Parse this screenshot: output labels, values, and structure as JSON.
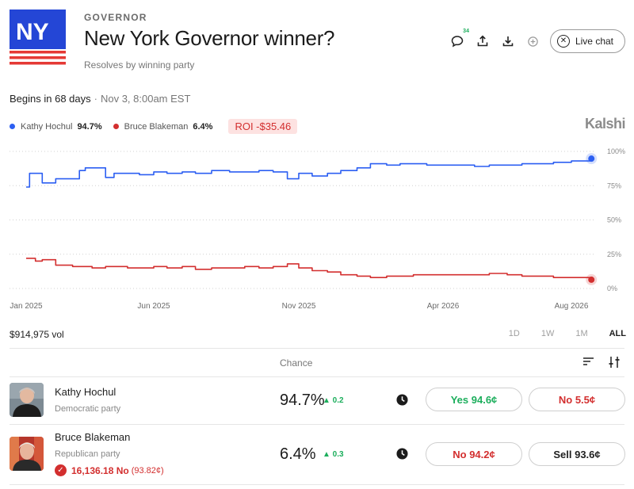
{
  "header": {
    "logo_text": "NY",
    "category": "GOVERNOR",
    "title": "New York Governor winner?",
    "subtitle": "Resolves by winning party",
    "comment_count": "34",
    "live_chat_label": "Live chat"
  },
  "timing": {
    "begins": "Begins in 68 days",
    "separator": "·",
    "date": "Nov 3, 8:00am EST"
  },
  "legend": {
    "items": [
      {
        "name": "Kathy Hochul",
        "pct": "94.7%",
        "color": "#2c5ff2"
      },
      {
        "name": "Bruce Blakeman",
        "pct": "6.4%",
        "color": "#d32f2f"
      }
    ],
    "roi": "ROI -$35.46"
  },
  "brand": "Kalshi",
  "chart_data": {
    "type": "line",
    "x_tick_labels": [
      "Jan 2025",
      "Jun 2025",
      "Nov 2025",
      "Apr 2026",
      "Aug 2026"
    ],
    "y_tick_labels": [
      "100%",
      "75%",
      "50%",
      "25%",
      "0%"
    ],
    "ylim": [
      0,
      100
    ],
    "grid": true,
    "series": [
      {
        "name": "Kathy Hochul",
        "color": "#2c5ff2",
        "x": [
          "2025-01-01",
          "2025-01-05",
          "2025-01-12",
          "2025-01-20",
          "2025-02-05",
          "2025-02-25",
          "2025-03-05",
          "2025-03-12",
          "2025-03-20",
          "2025-04-05",
          "2025-04-15",
          "2025-05-01",
          "2025-05-15",
          "2025-06-01",
          "2025-06-15",
          "2025-07-01",
          "2025-07-15",
          "2025-08-01",
          "2025-08-20",
          "2025-09-05",
          "2025-09-20",
          "2025-10-05",
          "2025-10-20",
          "2025-11-01",
          "2025-11-15",
          "2025-12-01",
          "2025-12-15",
          "2026-01-01",
          "2026-01-15",
          "2026-02-01",
          "2026-02-15",
          "2026-03-01",
          "2026-03-15",
          "2026-04-01",
          "2026-04-15",
          "2026-05-01",
          "2026-05-15",
          "2026-06-01",
          "2026-06-15",
          "2026-07-01",
          "2026-07-15",
          "2026-08-01",
          "2026-08-20"
        ],
        "y": [
          74,
          84,
          84,
          77,
          80,
          80,
          86,
          88,
          88,
          81,
          84,
          84,
          83,
          85,
          84,
          85,
          84,
          86,
          85,
          85,
          86,
          85,
          80,
          84,
          82,
          84,
          86,
          88,
          91,
          90,
          91,
          91,
          90,
          90,
          90,
          89,
          90,
          90,
          91,
          91,
          92,
          93,
          94.7
        ]
      },
      {
        "name": "Bruce Blakeman",
        "color": "#d32f2f",
        "x": [
          "2025-01-01",
          "2025-01-05",
          "2025-01-12",
          "2025-01-20",
          "2025-02-05",
          "2025-02-25",
          "2025-03-05",
          "2025-03-20",
          "2025-04-05",
          "2025-04-15",
          "2025-05-01",
          "2025-05-15",
          "2025-06-01",
          "2025-06-15",
          "2025-07-01",
          "2025-07-15",
          "2025-08-01",
          "2025-08-20",
          "2025-09-05",
          "2025-09-20",
          "2025-10-05",
          "2025-10-20",
          "2025-11-01",
          "2025-11-15",
          "2025-12-01",
          "2025-12-15",
          "2026-01-01",
          "2026-01-15",
          "2026-02-01",
          "2026-02-15",
          "2026-03-01",
          "2026-03-15",
          "2026-04-01",
          "2026-04-15",
          "2026-05-01",
          "2026-05-15",
          "2026-06-01",
          "2026-06-15",
          "2026-07-01",
          "2026-07-15",
          "2026-08-01",
          "2026-08-20"
        ],
        "y": [
          22,
          22,
          20,
          21,
          17,
          16,
          16,
          15,
          16,
          16,
          15,
          15,
          16,
          15,
          16,
          14,
          15,
          15,
          16,
          15,
          16,
          18,
          15,
          13,
          12,
          10,
          9,
          8,
          9,
          9,
          10,
          10,
          10,
          10,
          10,
          11,
          10,
          9,
          9,
          8,
          8,
          6.4
        ]
      }
    ]
  },
  "market": {
    "volume": "$914,975 vol",
    "ranges": [
      "1D",
      "1W",
      "1M",
      "ALL"
    ],
    "active_range": "ALL",
    "column_chance": "Chance"
  },
  "candidates": [
    {
      "name": "Kathy Hochul",
      "party": "Democratic party",
      "chance": "94.7%",
      "delta": "▲ 0.2",
      "buttons": [
        {
          "label": "Yes 94.6¢",
          "kind": "yes"
        },
        {
          "label": "No 5.5¢",
          "kind": "no"
        }
      ]
    },
    {
      "name": "Bruce Blakeman",
      "party": "Republican party",
      "chance": "6.4%",
      "delta": "▲ 0.3",
      "position": "16,136.18 No",
      "position_avg": "(93.82¢)",
      "buttons": [
        {
          "label": "No 94.2¢",
          "kind": "no"
        },
        {
          "label": "Sell 93.6¢",
          "kind": "sell"
        }
      ]
    }
  ]
}
